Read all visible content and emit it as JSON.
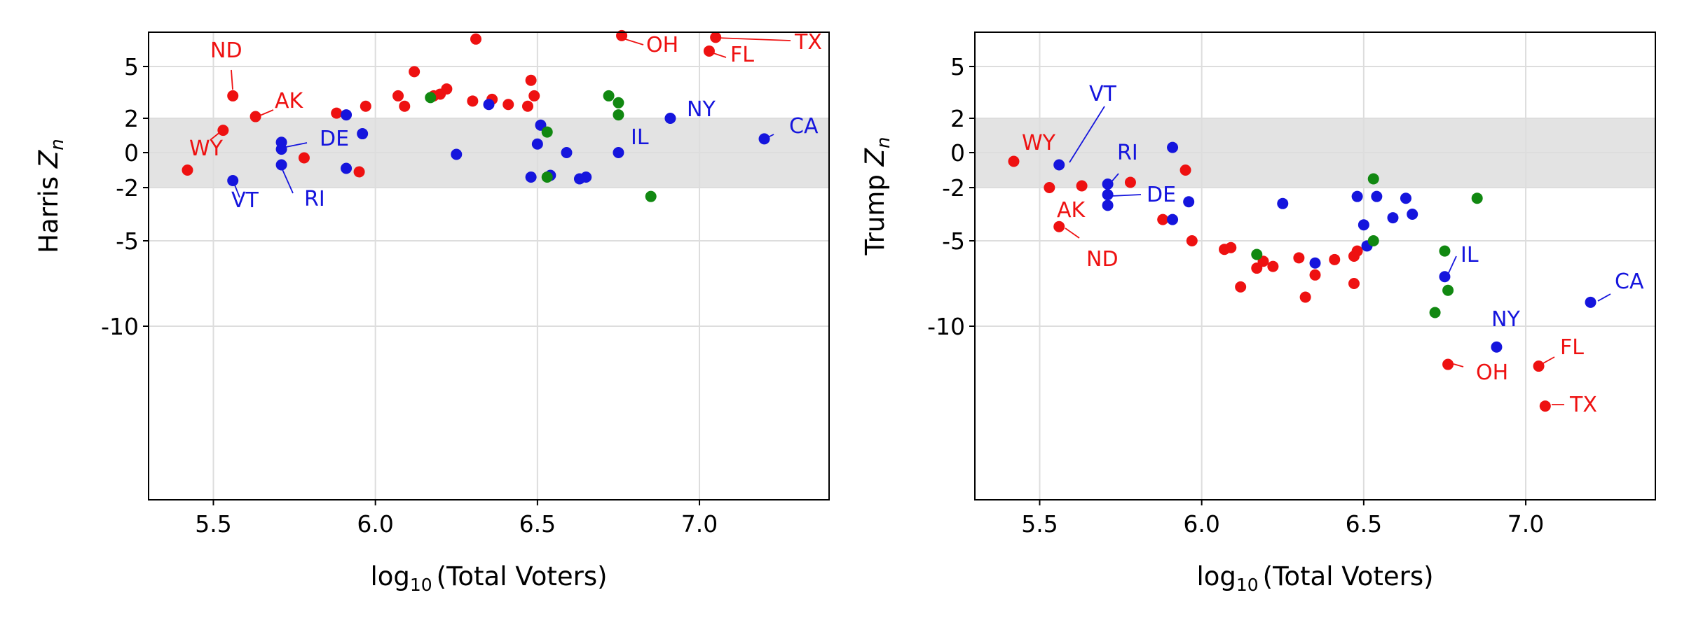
{
  "colors": {
    "red": "#ee1111",
    "blue": "#1515dd",
    "green": "#118811",
    "band": "#e3e3e3",
    "grid": "#dddddd"
  },
  "chart_data": [
    {
      "type": "scatter",
      "title": "",
      "xlabel": {
        "prefix": "log",
        "sub": "10",
        "rest": "(Total Voters)"
      },
      "ylabel": {
        "prefix": "Harris ",
        "var": "Z",
        "sub": "n"
      },
      "xlim": [
        5.3,
        7.4
      ],
      "ylim": [
        -20,
        7
      ],
      "y_scale": "symlog",
      "xticks": [
        "5.5",
        "6.0",
        "6.5",
        "7.0"
      ],
      "yticks": [
        "5",
        "2",
        "0",
        "-2",
        "-5",
        "-10"
      ],
      "band": [
        -2,
        2
      ],
      "grid": true,
      "points": [
        {
          "x": 5.42,
          "y": -1.0,
          "c": "red"
        },
        {
          "x": 5.53,
          "y": 1.3,
          "c": "red"
        },
        {
          "x": 5.56,
          "y": 3.3,
          "c": "red"
        },
        {
          "x": 5.63,
          "y": 2.1,
          "c": "red"
        },
        {
          "x": 5.78,
          "y": -0.3,
          "c": "red"
        },
        {
          "x": 5.88,
          "y": 2.3,
          "c": "red"
        },
        {
          "x": 5.95,
          "y": -1.1,
          "c": "red"
        },
        {
          "x": 5.97,
          "y": 2.7,
          "c": "red"
        },
        {
          "x": 6.07,
          "y": 3.3,
          "c": "red"
        },
        {
          "x": 6.09,
          "y": 2.7,
          "c": "red"
        },
        {
          "x": 6.12,
          "y": 4.7,
          "c": "red"
        },
        {
          "x": 6.18,
          "y": 3.3,
          "c": "red"
        },
        {
          "x": 6.2,
          "y": 3.4,
          "c": "red"
        },
        {
          "x": 6.22,
          "y": 3.7,
          "c": "red"
        },
        {
          "x": 6.3,
          "y": 3.0,
          "c": "red"
        },
        {
          "x": 6.31,
          "y": 6.6,
          "c": "red"
        },
        {
          "x": 6.36,
          "y": 3.1,
          "c": "red"
        },
        {
          "x": 6.41,
          "y": 2.8,
          "c": "red"
        },
        {
          "x": 6.47,
          "y": 2.7,
          "c": "red"
        },
        {
          "x": 6.48,
          "y": 4.2,
          "c": "red"
        },
        {
          "x": 6.49,
          "y": 3.3,
          "c": "red"
        },
        {
          "x": 6.76,
          "y": 6.8,
          "c": "red"
        },
        {
          "x": 7.03,
          "y": 5.9,
          "c": "red"
        },
        {
          "x": 7.05,
          "y": 6.7,
          "c": "red"
        },
        {
          "x": 5.56,
          "y": -1.6,
          "c": "blue"
        },
        {
          "x": 5.71,
          "y": 0.6,
          "c": "blue"
        },
        {
          "x": 5.71,
          "y": 0.2,
          "c": "blue"
        },
        {
          "x": 5.71,
          "y": -0.7,
          "c": "blue"
        },
        {
          "x": 5.91,
          "y": 2.2,
          "c": "blue"
        },
        {
          "x": 5.91,
          "y": -0.9,
          "c": "blue"
        },
        {
          "x": 5.96,
          "y": 1.1,
          "c": "blue"
        },
        {
          "x": 6.25,
          "y": -0.1,
          "c": "blue"
        },
        {
          "x": 6.35,
          "y": 2.8,
          "c": "blue"
        },
        {
          "x": 6.48,
          "y": -1.4,
          "c": "blue"
        },
        {
          "x": 6.5,
          "y": 0.5,
          "c": "blue"
        },
        {
          "x": 6.51,
          "y": 1.6,
          "c": "blue"
        },
        {
          "x": 6.54,
          "y": -1.3,
          "c": "blue"
        },
        {
          "x": 6.59,
          "y": 0.0,
          "c": "blue"
        },
        {
          "x": 6.63,
          "y": -1.5,
          "c": "blue"
        },
        {
          "x": 6.65,
          "y": -1.4,
          "c": "blue"
        },
        {
          "x": 6.75,
          "y": 0.0,
          "c": "blue"
        },
        {
          "x": 6.91,
          "y": 2.0,
          "c": "blue"
        },
        {
          "x": 7.2,
          "y": 0.8,
          "c": "blue"
        },
        {
          "x": 6.17,
          "y": 3.2,
          "c": "green"
        },
        {
          "x": 6.53,
          "y": 1.2,
          "c": "green"
        },
        {
          "x": 6.53,
          "y": -1.4,
          "c": "green"
        },
        {
          "x": 6.72,
          "y": 3.3,
          "c": "green"
        },
        {
          "x": 6.75,
          "y": 2.9,
          "c": "green"
        },
        {
          "x": 6.75,
          "y": 2.2,
          "c": "green"
        },
        {
          "x": 6.85,
          "y": -2.5,
          "c": "green"
        }
      ],
      "labels": [
        {
          "text": "ND",
          "c": "red",
          "x": 5.56,
          "y": 3.3
        },
        {
          "text": "AK",
          "c": "red",
          "x": 5.63,
          "y": 2.1
        },
        {
          "text": "WY",
          "c": "red",
          "x": 5.53,
          "y": 1.3
        },
        {
          "text": "OH",
          "c": "red",
          "x": 6.76,
          "y": 6.8
        },
        {
          "text": "FL",
          "c": "red",
          "x": 7.03,
          "y": 5.9
        },
        {
          "text": "TX",
          "c": "red",
          "x": 7.05,
          "y": 6.7
        },
        {
          "text": "DE",
          "c": "blue",
          "x": 5.71,
          "y": 0.2
        },
        {
          "text": "VT",
          "c": "blue",
          "x": 5.56,
          "y": -1.6
        },
        {
          "text": "RI",
          "c": "blue",
          "x": 5.71,
          "y": -0.7
        },
        {
          "text": "IL",
          "c": "blue",
          "x": 6.75,
          "y": 0.0
        },
        {
          "text": "NY",
          "c": "blue",
          "x": 6.91,
          "y": 2.0
        },
        {
          "text": "CA",
          "c": "blue",
          "x": 7.2,
          "y": 0.8
        }
      ]
    },
    {
      "type": "scatter",
      "title": "",
      "xlabel": {
        "prefix": "log",
        "sub": "10",
        "rest": "(Total Voters)"
      },
      "ylabel": {
        "prefix": "Trump ",
        "var": "Z",
        "sub": "n"
      },
      "xlim": [
        5.3,
        7.4
      ],
      "ylim": [
        -20,
        7
      ],
      "y_scale": "symlog",
      "xticks": [
        "5.5",
        "6.0",
        "6.5",
        "7.0"
      ],
      "yticks": [
        "5",
        "2",
        "0",
        "-2",
        "-5",
        "-10"
      ],
      "band": [
        -2,
        2
      ],
      "grid": true,
      "points": [
        {
          "x": 5.42,
          "y": -0.5,
          "c": "red"
        },
        {
          "x": 5.53,
          "y": -2.0,
          "c": "red"
        },
        {
          "x": 5.56,
          "y": -4.2,
          "c": "red"
        },
        {
          "x": 5.63,
          "y": -1.9,
          "c": "red"
        },
        {
          "x": 5.78,
          "y": -1.7,
          "c": "red"
        },
        {
          "x": 5.88,
          "y": -3.8,
          "c": "red"
        },
        {
          "x": 5.95,
          "y": -1.0,
          "c": "red"
        },
        {
          "x": 5.97,
          "y": -5.0,
          "c": "red"
        },
        {
          "x": 6.07,
          "y": -5.5,
          "c": "red"
        },
        {
          "x": 6.09,
          "y": -5.4,
          "c": "red"
        },
        {
          "x": 6.12,
          "y": -7.7,
          "c": "red"
        },
        {
          "x": 6.17,
          "y": -6.6,
          "c": "red"
        },
        {
          "x": 6.19,
          "y": -6.2,
          "c": "red"
        },
        {
          "x": 6.22,
          "y": -6.5,
          "c": "red"
        },
        {
          "x": 6.3,
          "y": -6.0,
          "c": "red"
        },
        {
          "x": 6.32,
          "y": -8.3,
          "c": "red"
        },
        {
          "x": 6.35,
          "y": -7.0,
          "c": "red"
        },
        {
          "x": 6.41,
          "y": -6.1,
          "c": "red"
        },
        {
          "x": 6.47,
          "y": -5.9,
          "c": "red"
        },
        {
          "x": 6.48,
          "y": -5.6,
          "c": "red"
        },
        {
          "x": 6.47,
          "y": -7.5,
          "c": "red"
        },
        {
          "x": 6.76,
          "y": -12.2,
          "c": "red"
        },
        {
          "x": 7.04,
          "y": -12.3,
          "c": "red"
        },
        {
          "x": 7.06,
          "y": -14.6,
          "c": "red"
        },
        {
          "x": 5.56,
          "y": -0.7,
          "c": "blue"
        },
        {
          "x": 5.71,
          "y": -1.8,
          "c": "blue"
        },
        {
          "x": 5.71,
          "y": -2.4,
          "c": "blue"
        },
        {
          "x": 5.71,
          "y": -3.0,
          "c": "blue"
        },
        {
          "x": 5.91,
          "y": 0.3,
          "c": "blue"
        },
        {
          "x": 5.91,
          "y": -3.8,
          "c": "blue"
        },
        {
          "x": 5.96,
          "y": -2.8,
          "c": "blue"
        },
        {
          "x": 6.25,
          "y": -2.9,
          "c": "blue"
        },
        {
          "x": 6.35,
          "y": -6.3,
          "c": "blue"
        },
        {
          "x": 6.48,
          "y": -2.5,
          "c": "blue"
        },
        {
          "x": 6.5,
          "y": -4.1,
          "c": "blue"
        },
        {
          "x": 6.51,
          "y": -5.3,
          "c": "blue"
        },
        {
          "x": 6.54,
          "y": -2.5,
          "c": "blue"
        },
        {
          "x": 6.59,
          "y": -3.7,
          "c": "blue"
        },
        {
          "x": 6.63,
          "y": -2.6,
          "c": "blue"
        },
        {
          "x": 6.65,
          "y": -3.5,
          "c": "blue"
        },
        {
          "x": 6.75,
          "y": -7.1,
          "c": "blue"
        },
        {
          "x": 6.91,
          "y": -11.2,
          "c": "blue"
        },
        {
          "x": 7.2,
          "y": -8.6,
          "c": "blue"
        },
        {
          "x": 6.17,
          "y": -5.8,
          "c": "green"
        },
        {
          "x": 6.53,
          "y": -1.5,
          "c": "green"
        },
        {
          "x": 6.53,
          "y": -5.0,
          "c": "green"
        },
        {
          "x": 6.72,
          "y": -9.2,
          "c": "green"
        },
        {
          "x": 6.75,
          "y": -5.6,
          "c": "green"
        },
        {
          "x": 6.76,
          "y": -7.9,
          "c": "green"
        },
        {
          "x": 6.85,
          "y": -2.6,
          "c": "green"
        }
      ],
      "labels": [
        {
          "text": "WY",
          "c": "red",
          "x": 5.42,
          "y": -0.5
        },
        {
          "text": "AK",
          "c": "red",
          "x": 5.56,
          "y": -4.2
        },
        {
          "text": "ND",
          "c": "red",
          "x": 5.56,
          "y": -4.2
        },
        {
          "text": "OH",
          "c": "red",
          "x": 6.76,
          "y": -12.2
        },
        {
          "text": "FL",
          "c": "red",
          "x": 7.04,
          "y": -12.3
        },
        {
          "text": "TX",
          "c": "red",
          "x": 7.06,
          "y": -14.6
        },
        {
          "text": "VT",
          "c": "blue",
          "x": 5.56,
          "y": -0.7
        },
        {
          "text": "RI",
          "c": "blue",
          "x": 5.71,
          "y": -1.8
        },
        {
          "text": "DE",
          "c": "blue",
          "x": 5.71,
          "y": -2.4
        },
        {
          "text": "IL",
          "c": "blue",
          "x": 6.75,
          "y": -7.1
        },
        {
          "text": "NY",
          "c": "blue",
          "x": 6.91,
          "y": -11.2
        },
        {
          "text": "CA",
          "c": "blue",
          "x": 7.2,
          "y": -8.6
        }
      ]
    }
  ]
}
